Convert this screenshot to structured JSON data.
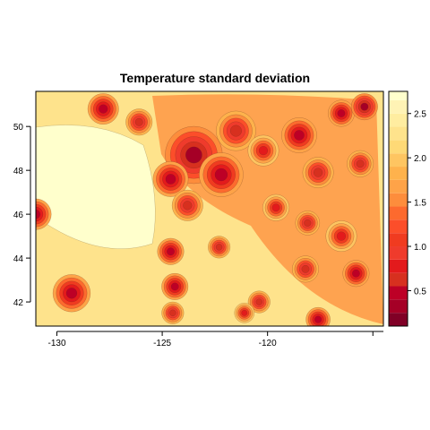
{
  "chart_data": {
    "type": "heatmap",
    "title": "Temperature standard deviation",
    "xlabel": "",
    "ylabel": "",
    "xlim": [
      -131,
      -114.5
    ],
    "ylim": [
      40.9,
      51.6
    ],
    "x_ticks": [
      -130,
      -125,
      -120
    ],
    "x_tick_labels": [
      "-130",
      "-125",
      "-120"
    ],
    "y_ticks": [
      42,
      44,
      46,
      48,
      50
    ],
    "y_tick_labels": [
      "42",
      "44",
      "46",
      "48",
      "50"
    ],
    "colorbar": {
      "range": [
        0.1,
        2.75
      ],
      "ticks": [
        0.5,
        1.0,
        1.5,
        2.0,
        2.5
      ],
      "tick_labels": [
        "0.5",
        "1.0",
        "1.5",
        "2.0",
        "2.5"
      ],
      "levels": [
        0.1,
        0.25,
        0.4,
        0.55,
        0.7,
        0.85,
        1.0,
        1.15,
        1.3,
        1.45,
        1.6,
        1.75,
        1.9,
        2.05,
        2.2,
        2.35,
        2.5,
        2.65,
        2.75
      ],
      "colors": [
        "#800026",
        "#a50026",
        "#bd0026",
        "#d7301f",
        "#e31a1c",
        "#ef3b2c",
        "#f03b20",
        "#fc4e2a",
        "#fd6a2e",
        "#fd8d3c",
        "#fea348",
        "#feb24c",
        "#fec561",
        "#fed976",
        "#fee38c",
        "#ffeda0",
        "#fff3b5",
        "#ffffcc"
      ]
    },
    "grid": false,
    "legend": "right (colorbar)"
  }
}
